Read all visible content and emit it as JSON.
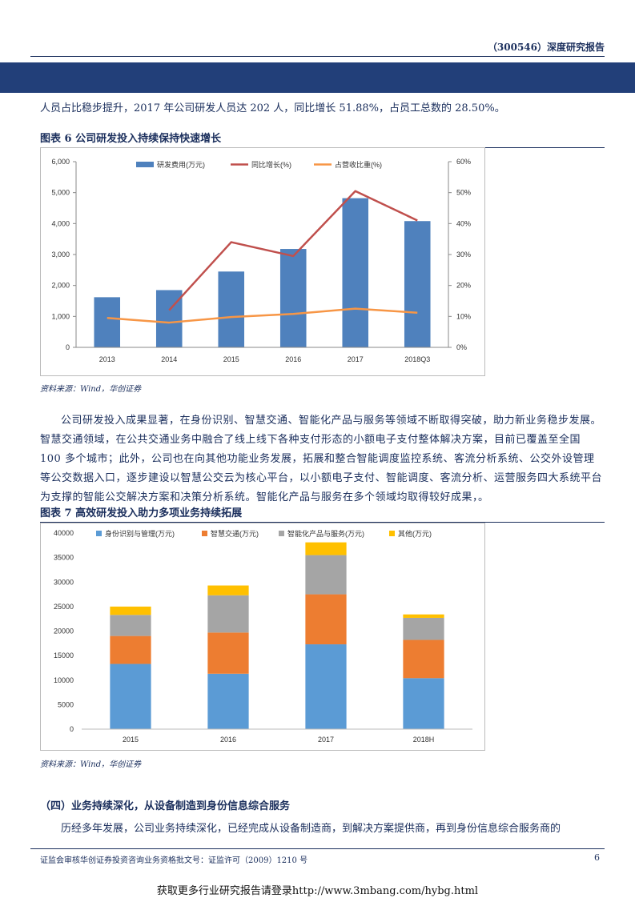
{
  "header": {
    "title": "（300546）深度研究报告"
  },
  "paragraph1": "人员占比稳步提升，2017 年公司研发人员达 202 人，同比增长 51.88%，占员工总数的 28.50%。",
  "figure6": {
    "title": "图表 6    公司研发投入持续保持快速增长",
    "source": "资料来源：Wind，华创证券"
  },
  "paragraph2": "公司研发投入成果显著，在身份识别、智慧交通、智能化产品与服务等领域不断取得突破，助力新业务稳步发展。智慧交通领域，在公共交通业务中融合了线上线下各种支付形态的小额电子支付整体解决方案，目前已覆盖至全国 100 多个城市；此外，公司也在向其他功能业务发展，拓展和整合智能调度监控系统、客流分析系统、公交外设管理等公交数据入口，逐步建设以智慧公交云为核心平台，以小额电子支付、智能调度、客流分析、运营服务四大系统平台为支撑的智能公交解决方案和决策分析系统。智能化产品与服务在多个领域均取得较好成果，。",
  "figure7": {
    "title": "图表 7    高效研发投入助力多项业务持续拓展",
    "source": "资料来源：Wind，华创证券"
  },
  "section4": {
    "heading": "（四）业务持续深化，从设备制造到身份信息综合服务",
    "text": "历经多年发展，公司业务持续深化，已经完成从设备制造商，到解决方案提供商，再到身份信息综合服务商的"
  },
  "footer": {
    "license": "证监会审核华创证券投资咨询业务资格批文号：证监许可（2009）1210 号",
    "page": "6"
  },
  "banner": "获取更多行业研究报告请登录http://www.3mbang.com/hybg.html",
  "chart_data": [
    {
      "type": "bar",
      "categories": [
        "2013",
        "2014",
        "2015",
        "2016",
        "2017",
        "2018Q3"
      ],
      "y_left_ticks": [
        "6,000",
        "5,000",
        "4,000",
        "3,000",
        "2,000",
        "1,000",
        "0"
      ],
      "y_right_ticks": [
        "60%",
        "50%",
        "40%",
        "30%",
        "20%",
        "10%",
        "0%"
      ],
      "ylim_left": [
        0,
        6000
      ],
      "ylim_right": [
        0,
        60
      ],
      "legend_position": "top",
      "series": [
        {
          "name": "研发费用(万元)",
          "kind": "bar",
          "axis": "left",
          "color": "#4f81bd",
          "values": [
            1620,
            1850,
            2450,
            3180,
            4820,
            4080
          ]
        },
        {
          "name": "同比增长(%)",
          "kind": "line",
          "axis": "right",
          "color": "#c0504d",
          "values": [
            null,
            12,
            34,
            29.5,
            50.5,
            41
          ]
        },
        {
          "name": "占营收比重(%)",
          "kind": "line",
          "axis": "right",
          "color": "#f79646",
          "values": [
            9.5,
            8,
            9.8,
            10.8,
            12.5,
            11.2
          ]
        }
      ]
    },
    {
      "type": "bar",
      "stacked": true,
      "categories": [
        "2015",
        "2016",
        "2017",
        "2018H"
      ],
      "y_ticks": [
        "40000",
        "35000",
        "30000",
        "25000",
        "20000",
        "15000",
        "10000",
        "5000",
        "0"
      ],
      "ylim": [
        0,
        40000
      ],
      "legend_position": "top",
      "series": [
        {
          "name": "身份识别与管理(万元)",
          "color": "#5b9bd5",
          "values": [
            13300,
            11300,
            17300,
            10400
          ]
        },
        {
          "name": "智慧交通(万元)",
          "color": "#ed7d31",
          "values": [
            5700,
            8400,
            10200,
            7800
          ]
        },
        {
          "name": "智能化产品与服务(万元)",
          "color": "#a5a5a5",
          "values": [
            4300,
            7600,
            8000,
            4500
          ]
        },
        {
          "name": "其他(万元)",
          "color": "#ffc000",
          "values": [
            1700,
            2000,
            2600,
            700
          ]
        }
      ]
    }
  ]
}
